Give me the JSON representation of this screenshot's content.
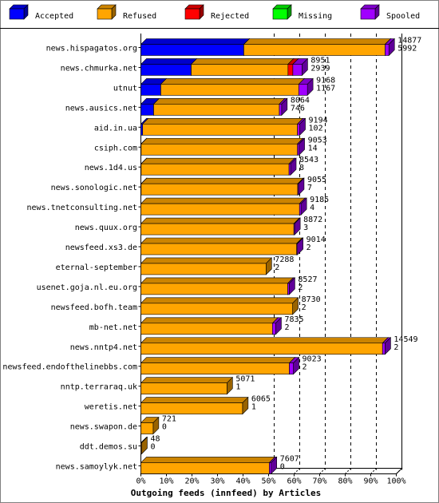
{
  "chart_data": {
    "type": "bar",
    "orientation": "horizontal",
    "stacked": true,
    "xlabel": "Outgoing feeds (innfeed) by Articles",
    "xlim": [
      0,
      100
    ],
    "x_ticks": [
      "0%",
      "10%",
      "20%",
      "30%",
      "40%",
      "50%",
      "60%",
      "70%",
      "80%",
      "90%",
      "100%"
    ],
    "legend_position": "top",
    "series": [
      {
        "name": "Accepted",
        "color": "#0000ff"
      },
      {
        "name": "Refused",
        "color": "#ffa500"
      },
      {
        "name": "Rejected",
        "color": "#ff0000"
      },
      {
        "name": "Missing",
        "color": "#00ff00"
      },
      {
        "name": "Spooled",
        "color": "#a000ff"
      }
    ],
    "categories": [
      "news.hispagatos.org",
      "news.chmurka.net",
      "utnut",
      "news.ausics.net",
      "aid.in.ua",
      "csiph.com",
      "news.1d4.us",
      "news.sonologic.net",
      "news.tnetconsulting.net",
      "news.quux.org",
      "newsfeed.xs3.de",
      "eternal-september",
      "usenet.goja.nl.eu.org",
      "newsfeed.bofh.team",
      "mb-net.net",
      "news.nntp4.net",
      "newsfeed.endofthelinebbs.com",
      "nntp.terraraq.uk",
      "weretis.net",
      "news.swapon.de",
      "ddt.demos.su",
      "news.samoylyk.net"
    ],
    "total_labels": [
      "14877",
      "8951",
      "9168",
      "8064",
      "9194",
      "9053",
      "8543",
      "9055",
      "9185",
      "8872",
      "9014",
      "7288",
      "8527",
      "8730",
      "7835",
      "14549",
      "9023",
      "5071",
      "6065",
      "721",
      "48",
      "7607"
    ],
    "accepted_labels": [
      "5992",
      "2939",
      "1167",
      "746",
      "102",
      "14",
      "8",
      "7",
      "4",
      "3",
      "2",
      "2",
      "2",
      "2",
      "2",
      "2",
      "2",
      "1",
      "1",
      "0",
      "0",
      "0"
    ],
    "bars_percent": [
      {
        "accepted": 40.3,
        "refused": 55.3,
        "rejected": 0,
        "missing": 0,
        "spooled": 1.5
      },
      {
        "accepted": 19.7,
        "refused": 37.9,
        "rejected": 1.9,
        "missing": 0,
        "spooled": 3.6
      },
      {
        "accepted": 7.8,
        "refused": 54.0,
        "rejected": 0,
        "missing": 0,
        "spooled": 3.4
      },
      {
        "accepted": 5.0,
        "refused": 49.2,
        "rejected": 0,
        "missing": 0,
        "spooled": 0.9
      },
      {
        "accepted": 0.7,
        "refused": 60.6,
        "rejected": 0,
        "missing": 0,
        "spooled": 0.9
      },
      {
        "accepted": 0.1,
        "refused": 61.2,
        "rejected": 0,
        "missing": 0,
        "spooled": 0.6
      },
      {
        "accepted": 0.1,
        "refused": 57.9,
        "rejected": 0,
        "missing": 0,
        "spooled": 0.6
      },
      {
        "accepted": 0.1,
        "refused": 61.3,
        "rejected": 0,
        "missing": 0,
        "spooled": 0.3
      },
      {
        "accepted": 0,
        "refused": 62.1,
        "rejected": 0,
        "missing": 0,
        "spooled": 0.6
      },
      {
        "accepted": 0,
        "refused": 59.9,
        "rejected": 0,
        "missing": 0,
        "spooled": 0.3
      },
      {
        "accepted": 0,
        "refused": 61.0,
        "rejected": 0,
        "missing": 0,
        "spooled": 0.3
      },
      {
        "accepted": 0,
        "refused": 49.0,
        "rejected": 0,
        "missing": 0,
        "spooled": 0
      },
      {
        "accepted": 0,
        "refused": 57.5,
        "rejected": 0,
        "missing": 0,
        "spooled": 0.6
      },
      {
        "accepted": 0,
        "refused": 59.4,
        "rejected": 0,
        "missing": 0,
        "spooled": 0
      },
      {
        "accepted": 0,
        "refused": 51.5,
        "rejected": 0,
        "missing": 0,
        "spooled": 1.3
      },
      {
        "accepted": 0,
        "refused": 94.6,
        "rejected": 0,
        "missing": 0,
        "spooled": 1.0
      },
      {
        "accepted": 0,
        "refused": 58.1,
        "rejected": 0,
        "missing": 0,
        "spooled": 1.6
      },
      {
        "accepted": 0,
        "refused": 33.7,
        "rejected": 0,
        "missing": 0,
        "spooled": 0
      },
      {
        "accepted": 0,
        "refused": 39.8,
        "rejected": 0,
        "missing": 0,
        "spooled": 0
      },
      {
        "accepted": 0,
        "refused": 4.8,
        "rejected": 0,
        "missing": 0,
        "spooled": 0
      },
      {
        "accepted": 0,
        "refused": 0.3,
        "rejected": 0,
        "missing": 0,
        "spooled": 0
      },
      {
        "accepted": 0,
        "refused": 50.3,
        "rejected": 0,
        "missing": 0,
        "spooled": 0.7
      }
    ]
  }
}
